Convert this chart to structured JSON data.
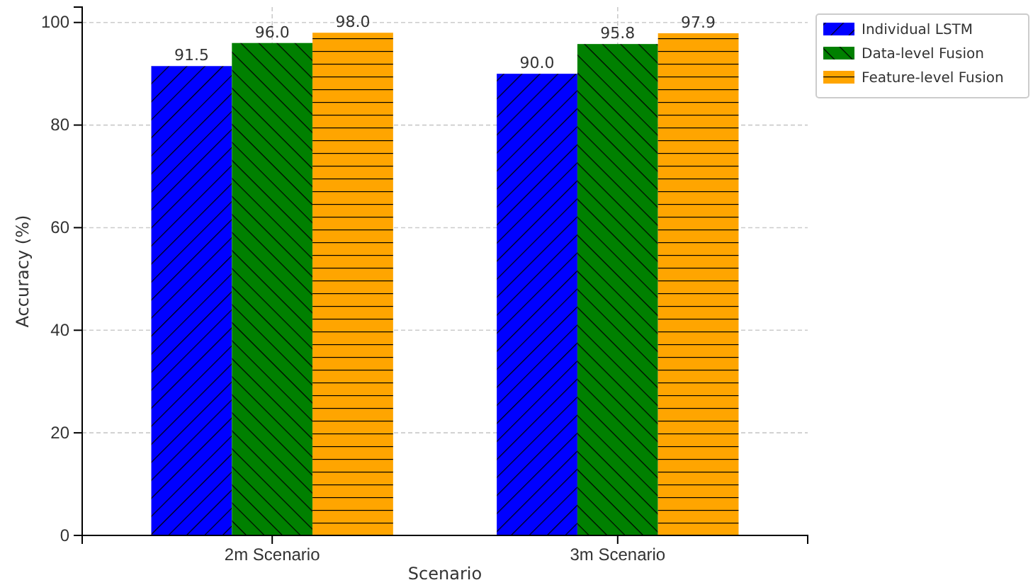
{
  "chart_data": {
    "type": "bar",
    "xlabel": "Scenario",
    "ylabel": "Accuracy (%)",
    "categories": [
      "2m Scenario",
      "3m Scenario"
    ],
    "series": [
      {
        "name": "Individual LSTM",
        "color": "#0000ff",
        "values": [
          91.5,
          90.0
        ],
        "value_labels": [
          "91.5",
          "90.0"
        ]
      },
      {
        "name": "Data-level Fusion",
        "color": "#008000",
        "values": [
          96.0,
          95.8
        ],
        "value_labels": [
          "96.0",
          "95.8"
        ]
      },
      {
        "name": "Feature-level Fusion",
        "color": "#ffa500",
        "values": [
          98.0,
          97.9
        ],
        "value_labels": [
          "98.0",
          "97.9"
        ]
      }
    ],
    "ylim": [
      0,
      103
    ],
    "yticks": [
      0,
      20,
      40,
      60,
      80,
      100
    ],
    "grid": true,
    "legend": "top right"
  }
}
